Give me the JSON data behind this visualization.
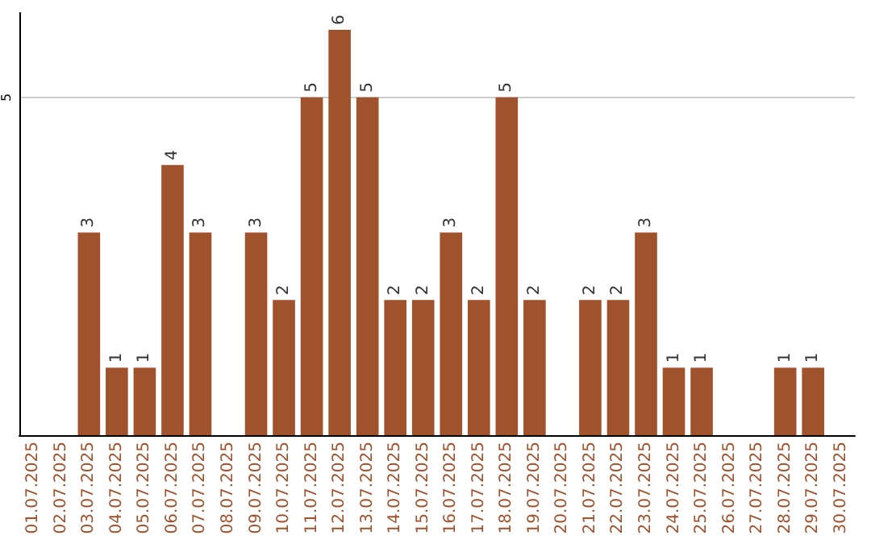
{
  "chart_data": {
    "type": "bar",
    "categories": [
      "01.07.2025",
      "02.07.2025",
      "03.07.2025",
      "04.07.2025",
      "05.07.2025",
      "06.07.2025",
      "07.07.2025",
      "08.07.2025",
      "09.07.2025",
      "10.07.2025",
      "11.07.2025",
      "12.07.2025",
      "13.07.2025",
      "14.07.2025",
      "15.07.2025",
      "16.07.2025",
      "17.07.2025",
      "18.07.2025",
      "19.07.2025",
      "20.07.2025",
      "21.07.2025",
      "22.07.2025",
      "23.07.2025",
      "24.07.2025",
      "25.07.2025",
      "26.07.2025",
      "27.07.2025",
      "28.07.2025",
      "29.07.2025",
      "30.07.2025"
    ],
    "values": [
      0,
      0,
      3,
      1,
      1,
      4,
      3,
      0,
      3,
      2,
      5,
      6,
      5,
      2,
      2,
      3,
      2,
      5,
      2,
      0,
      2,
      2,
      3,
      1,
      1,
      0,
      0,
      1,
      1,
      0
    ],
    "value_labels": [
      null,
      null,
      "3",
      "1",
      "1",
      "4",
      "3",
      null,
      "3",
      "2",
      "5",
      "6",
      "5",
      "2",
      "2",
      "3",
      "2",
      "5",
      "2",
      null,
      "2",
      "2",
      "3",
      "1",
      "1",
      null,
      null,
      "1",
      "1",
      null
    ],
    "color": "#a0522d",
    "ylim": [
      0,
      6.25
    ],
    "yticks": [
      5
    ],
    "grid": "y"
  }
}
